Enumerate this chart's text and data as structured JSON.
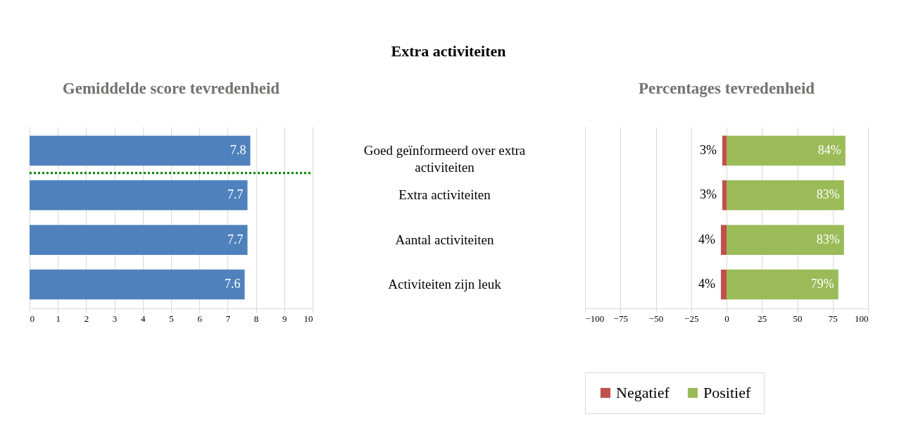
{
  "chart_data": [
    {
      "type": "bar",
      "orientation": "horizontal",
      "title": "Gemiddelde score tevredenheid",
      "annotations": [
        "Extra activiteiten"
      ],
      "categories": [
        "Goed geïnformeerd over extra activiteiten",
        "Extra activiteiten",
        "Aantal activiteiten",
        "Activiteiten zijn leuk"
      ],
      "values": [
        7.8,
        7.7,
        7.7,
        7.6
      ],
      "color": "#4f81bd",
      "data_labels": true,
      "xlim": [
        0,
        10
      ],
      "xticks": [
        0,
        1,
        2,
        3,
        4,
        5,
        6,
        7,
        8,
        9,
        10
      ],
      "grid": "x",
      "tick_labels": "x",
      "ref_lines": [
        {
          "axis": "y",
          "value": "Goed geïnformeerd over extra activiteiten",
          "color": "#008000",
          "line_style": "dotted"
        }
      ]
    },
    {
      "type": "bar",
      "orientation": "horizontal",
      "title": "Percentages tevredenheid",
      "categories": [
        "Goed geïnformeerd over extra activiteiten",
        "Extra activiteiten",
        "Aantal activiteiten",
        "Activiteiten zijn leuk"
      ],
      "series": [
        {
          "name": "Negatief",
          "color": "#c0504d",
          "base": [
            -3,
            -3,
            -4,
            -4
          ],
          "values": [
            3,
            3,
            4,
            4
          ],
          "value_labels": [
            "3%",
            "3%",
            "4%",
            "4%"
          ]
        },
        {
          "name": "Positief",
          "color": "#9bbb59",
          "values": [
            84,
            83,
            83,
            79
          ],
          "value_labels": [
            "84%",
            "83%",
            "83%",
            "79%"
          ]
        }
      ],
      "xlim": [
        -100,
        100
      ],
      "xticks": [
        -100,
        -75,
        -50,
        -25,
        0,
        25,
        50,
        75,
        100
      ],
      "grid": "x",
      "legend": "bottom"
    }
  ]
}
